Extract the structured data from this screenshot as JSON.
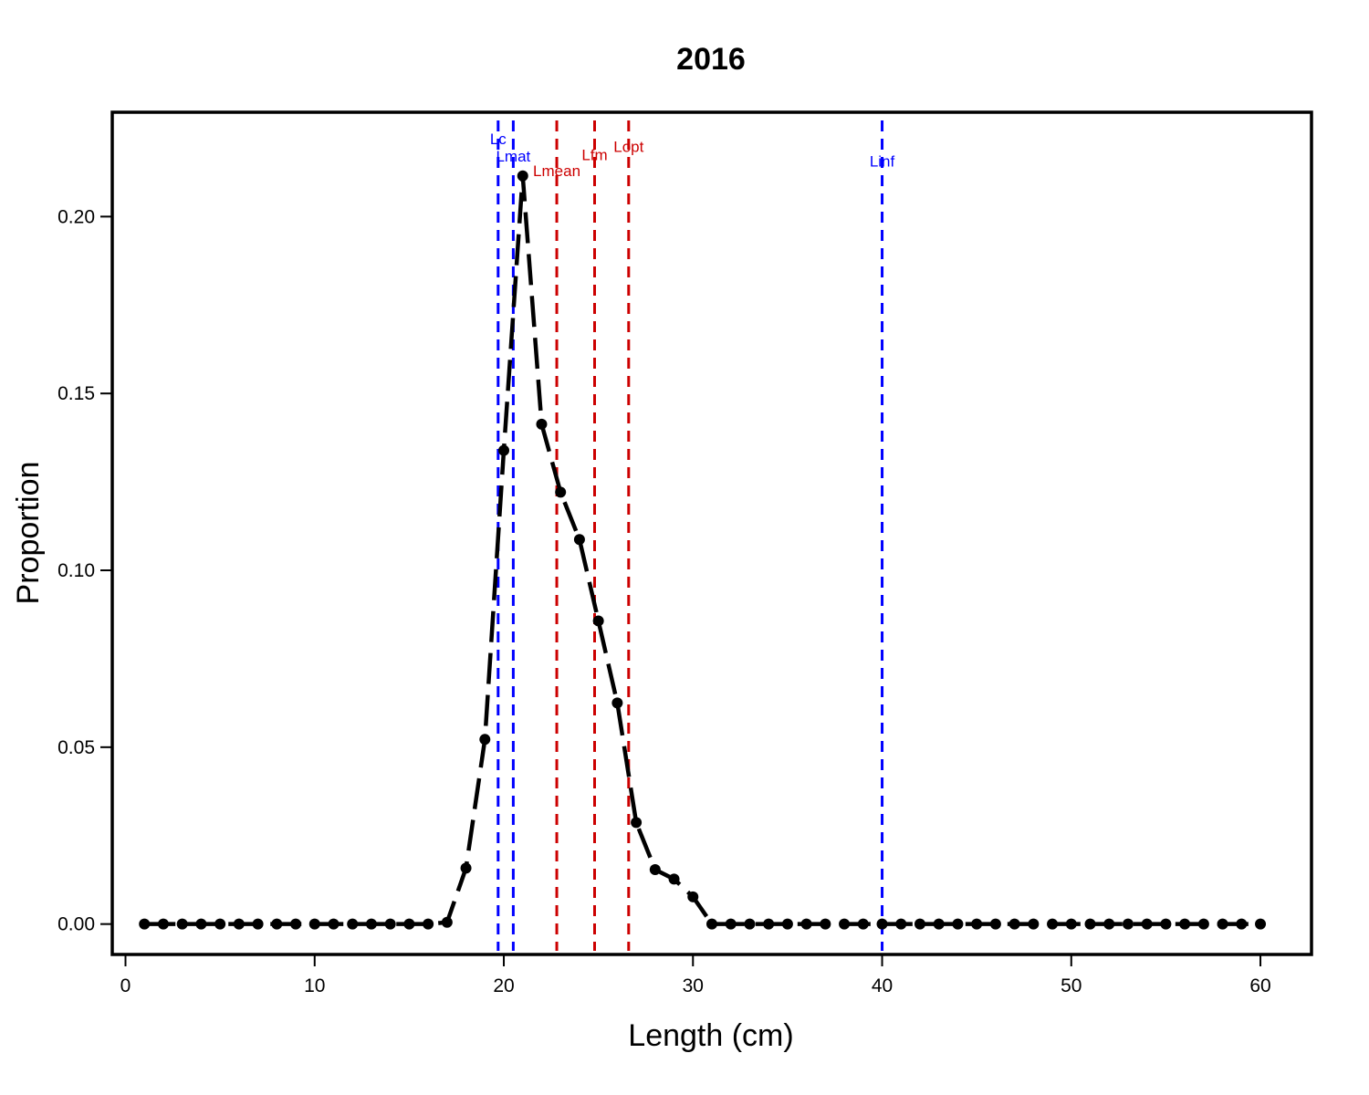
{
  "chart_data": {
    "type": "line",
    "title": "2016",
    "xlabel": "Length (cm)",
    "ylabel": "Proportion",
    "xlim": [
      -0.7,
      62.7
    ],
    "ylim": [
      -0.0086,
      0.2295
    ],
    "xticks": [
      0,
      10,
      20,
      30,
      40,
      50,
      60
    ],
    "xtick_labels": [
      "0",
      "10",
      "20",
      "30",
      "40",
      "50",
      "60"
    ],
    "yticks": [
      0,
      0.05,
      0.1,
      0.15,
      0.2
    ],
    "ytick_labels": [
      "0.00",
      "0.05",
      "0.10",
      "0.15",
      "0.20"
    ],
    "grid": false,
    "series": [
      {
        "x": [
          1,
          2,
          3,
          4,
          5,
          6,
          7,
          8,
          9,
          10,
          11,
          12,
          13,
          14,
          15,
          16,
          17,
          18,
          19,
          20,
          21,
          22,
          23,
          24,
          25,
          26,
          27,
          28,
          29,
          30,
          31,
          32,
          33,
          34,
          35,
          36,
          37,
          38,
          39,
          40,
          41,
          42,
          43,
          44,
          45,
          46,
          47,
          48,
          49,
          50,
          51,
          52,
          53,
          54,
          55,
          56,
          57,
          58,
          59,
          60
        ],
        "values": [
          0,
          0,
          0,
          0,
          0,
          0,
          0,
          0,
          0,
          0,
          0,
          0,
          0,
          0,
          0,
          0,
          0.0005,
          0.0158,
          0.0522,
          0.1339,
          0.2115,
          0.1413,
          0.1221,
          0.1087,
          0.0857,
          0.0625,
          0.0287,
          0.0154,
          0.0127,
          0.0077,
          0,
          0,
          0,
          0,
          0,
          0,
          0,
          0,
          0,
          0,
          0,
          0,
          0,
          0,
          0,
          0,
          0,
          0,
          0,
          0,
          0,
          0,
          0,
          0,
          0,
          0,
          0,
          0,
          0,
          0
        ],
        "color": "#000000"
      }
    ],
    "reference_lines": [
      {
        "label": "Lc",
        "x": 19.7,
        "color": "#0000ff",
        "label_y": 0.2205
      },
      {
        "label": "Lmat",
        "x": 20.5,
        "color": "#0000ff",
        "label_y": 0.2156
      },
      {
        "label": "Lmean",
        "x": 22.8,
        "color": "#cc0000",
        "label_y": 0.2114
      },
      {
        "label": "Lfm",
        "x": 24.8,
        "color": "#cc0000",
        "label_y": 0.2159
      },
      {
        "label": "Lopt",
        "x": 26.6,
        "color": "#cc0000",
        "label_y": 0.2183
      },
      {
        "label": "Linf",
        "x": 40.0,
        "color": "#0000ff",
        "label_y": 0.2141
      }
    ]
  }
}
